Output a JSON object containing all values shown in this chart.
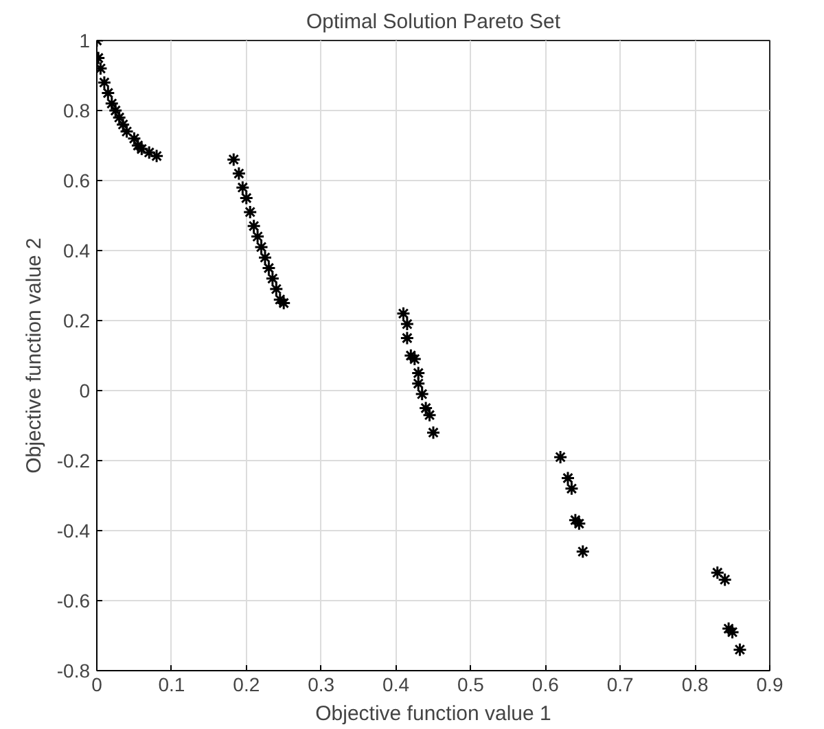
{
  "chart_data": {
    "type": "scatter",
    "title": "Optimal Solution Pareto Set",
    "xlabel": "Objective function value 1",
    "ylabel": "Objective function value 2",
    "x": [
      0,
      0.002,
      0.005,
      0.01,
      0.015,
      0.02,
      0.025,
      0.03,
      0.035,
      0.04,
      0.05,
      0.055,
      0.06,
      0.07,
      0.08,
      0.183,
      0.19,
      0.195,
      0.2,
      0.205,
      0.21,
      0.215,
      0.22,
      0.225,
      0.23,
      0.235,
      0.24,
      0.245,
      0.25,
      0.41,
      0.415,
      0.415,
      0.42,
      0.425,
      0.43,
      0.43,
      0.435,
      0.44,
      0.445,
      0.45,
      0.62,
      0.63,
      0.635,
      0.64,
      0.645,
      0.65,
      0.83,
      0.84,
      0.845,
      0.85,
      0.86
    ],
    "series": [
      {
        "color": "#000000",
        "values": [
          1,
          0.95,
          0.92,
          0.88,
          0.85,
          0.82,
          0.8,
          0.78,
          0.76,
          0.74,
          0.72,
          0.7,
          0.69,
          0.68,
          0.67,
          0.66,
          0.62,
          0.58,
          0.55,
          0.51,
          0.47,
          0.44,
          0.41,
          0.38,
          0.35,
          0.32,
          0.29,
          0.26,
          0.25,
          0.22,
          0.19,
          0.15,
          0.1,
          0.09,
          0.05,
          0.02,
          -0.01,
          -0.05,
          -0.07,
          -0.12,
          -0.19,
          -0.25,
          -0.28,
          -0.37,
          -0.38,
          -0.46,
          -0.52,
          -0.54,
          -0.68,
          -0.69,
          -0.74
        ]
      }
    ],
    "xlim": [
      0,
      0.9
    ],
    "ylim": [
      -0.8,
      1
    ],
    "xticks": [
      0,
      0.1,
      0.2,
      0.3,
      0.4,
      0.5,
      0.6,
      0.7,
      0.8,
      0.9
    ],
    "yticks": [
      -0.8,
      -0.6,
      -0.4,
      -0.2,
      0,
      0.2,
      0.4,
      0.6,
      0.8,
      1
    ],
    "grid": true,
    "marker": "cross"
  }
}
